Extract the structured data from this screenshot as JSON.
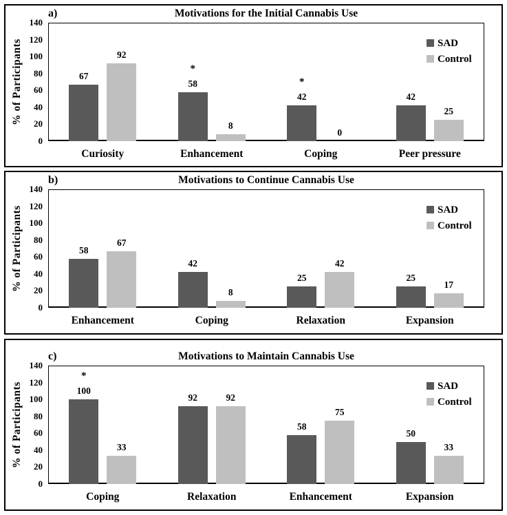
{
  "figure": {
    "description": "Three-panel grouped bar chart figure comparing SAD and Control groups",
    "series_colors": {
      "SAD": "#595959",
      "Control": "#bfbfbf"
    }
  },
  "chart_data": [
    {
      "type": "bar",
      "panel_label": "a)",
      "title": "Motivations for the Initial Cannabis Use",
      "ylabel": "% of Participants",
      "ylim": [
        0,
        140
      ],
      "yticks": [
        0,
        20,
        40,
        60,
        80,
        100,
        120,
        140
      ],
      "grid": false,
      "legend_position": "top-right",
      "categories": [
        "Curiosity",
        "Enhancement",
        "Coping",
        "Peer pressure"
      ],
      "series": [
        {
          "name": "SAD",
          "color": "#595959",
          "values": [
            67,
            58,
            42,
            42
          ],
          "stars": [
            "",
            "*",
            "*",
            ""
          ]
        },
        {
          "name": "Control",
          "color": "#bfbfbf",
          "values": [
            92,
            8,
            0,
            25
          ],
          "stars": [
            "",
            "",
            "",
            ""
          ]
        }
      ]
    },
    {
      "type": "bar",
      "panel_label": "b)",
      "title": "Motivations to Continue Cannabis Use",
      "ylabel": "% of Participants",
      "ylim": [
        0,
        140
      ],
      "yticks": [
        0,
        20,
        40,
        60,
        80,
        100,
        120,
        140
      ],
      "grid": false,
      "legend_position": "top-right",
      "categories": [
        "Enhancement",
        "Coping",
        "Relaxation",
        "Expansion"
      ],
      "series": [
        {
          "name": "SAD",
          "color": "#595959",
          "values": [
            58,
            42,
            25,
            25
          ],
          "stars": [
            "",
            "",
            "",
            ""
          ]
        },
        {
          "name": "Control",
          "color": "#bfbfbf",
          "values": [
            67,
            8,
            42,
            17
          ],
          "stars": [
            "",
            "",
            "",
            ""
          ]
        }
      ]
    },
    {
      "type": "bar",
      "panel_label": "c)",
      "title": "Motivations to Maintain Cannabis Use",
      "ylabel": "% of Participants",
      "ylim": [
        0,
        140
      ],
      "yticks": [
        0,
        20,
        40,
        60,
        80,
        100,
        120,
        140
      ],
      "grid": false,
      "legend_position": "top-right",
      "categories": [
        "Coping",
        "Relaxation",
        "Enhancement",
        "Expansion"
      ],
      "series": [
        {
          "name": "SAD",
          "color": "#595959",
          "values": [
            100,
            92,
            58,
            50
          ],
          "stars": [
            "*",
            "",
            "",
            ""
          ]
        },
        {
          "name": "Control",
          "color": "#bfbfbf",
          "values": [
            33,
            92,
            75,
            33
          ],
          "stars": [
            "",
            "",
            "",
            ""
          ]
        }
      ]
    }
  ]
}
